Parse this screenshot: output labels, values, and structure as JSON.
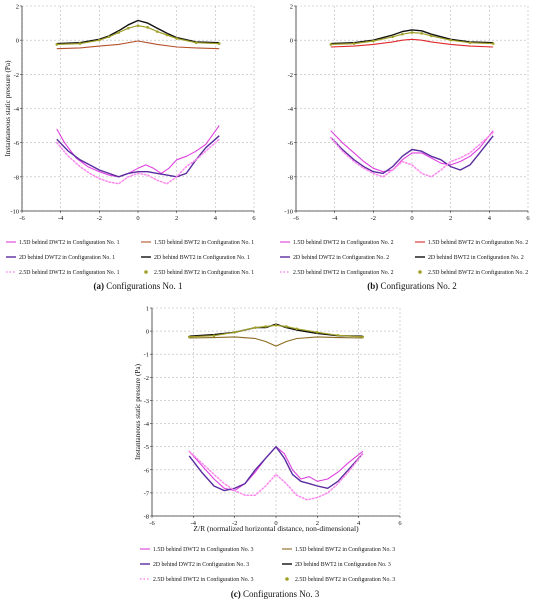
{
  "colors": {
    "magenta": "#e040e0",
    "purple": "#5a2ca0",
    "pink": "#ff88ee",
    "red_brown": "#b5522c",
    "black": "#111111",
    "olive": "#a0a028",
    "red": "#e0282c",
    "dark_olive": "#8a6a1e",
    "grid": "#b8b8b8"
  },
  "chart_data": [
    {
      "type": "line",
      "panel": "a",
      "caption_label": "(a)",
      "caption_text": "Configurations No. 1",
      "title": "",
      "ylabel": "Instantaneous static pressure (Pa)",
      "xlabel": "",
      "xlim": [
        -6,
        6
      ],
      "ylim": [
        -10,
        2
      ],
      "xticks": [
        -6,
        -4,
        -2,
        0,
        2,
        4,
        6
      ],
      "yticks": [
        -10,
        -8,
        -6,
        -4,
        -2,
        0,
        2
      ],
      "grid": true,
      "series": [
        {
          "name": "1.5D behind DWT2 in Configuration No. 1",
          "color": "#e040e0",
          "style": "solid",
          "width": 1.1,
          "x": [
            -4.2,
            -3.8,
            -3.2,
            -2.6,
            -2.0,
            -1.5,
            -1.0,
            -0.5,
            0,
            0.4,
            0.8,
            1.2,
            1.6,
            2.0,
            2.5,
            3.0,
            3.5,
            4.2
          ],
          "y": [
            -5.2,
            -6.0,
            -6.9,
            -7.4,
            -7.7,
            -7.9,
            -8.0,
            -7.8,
            -7.5,
            -7.3,
            -7.5,
            -7.8,
            -7.5,
            -7.0,
            -6.8,
            -6.5,
            -6.1,
            -5.0
          ]
        },
        {
          "name": "1.5D behind BWT2 in Configuration No. 1",
          "color": "#b5522c",
          "style": "solid",
          "width": 1.1,
          "x": [
            -4.2,
            -3.0,
            -2.0,
            -1.0,
            -0.5,
            0,
            0.5,
            1.0,
            2.0,
            3.0,
            4.2
          ],
          "y": [
            -0.5,
            -0.45,
            -0.35,
            -0.25,
            -0.15,
            -0.05,
            -0.15,
            -0.25,
            -0.4,
            -0.45,
            -0.5
          ]
        },
        {
          "name": "2D behind DWT2 in Configuration No. 1",
          "color": "#5a2ca0",
          "style": "solid",
          "width": 1.4,
          "x": [
            -4.2,
            -3.6,
            -3.0,
            -2.5,
            -2.0,
            -1.5,
            -1.0,
            -0.5,
            0,
            0.5,
            1.0,
            1.5,
            2.0,
            2.5,
            3.0,
            3.5,
            4.2
          ],
          "y": [
            -5.8,
            -6.5,
            -7.0,
            -7.3,
            -7.6,
            -7.8,
            -8.0,
            -7.8,
            -7.7,
            -7.7,
            -7.8,
            -7.9,
            -8.0,
            -7.8,
            -7.0,
            -6.3,
            -5.6
          ]
        },
        {
          "name": "2D behind BWT2 in Configuration No. 1",
          "color": "#111111",
          "style": "solid",
          "width": 1.4,
          "x": [
            -4.2,
            -3.0,
            -2.0,
            -1.5,
            -1.0,
            -0.5,
            0,
            0.5,
            1.0,
            1.5,
            2.0,
            3.0,
            4.2
          ],
          "y": [
            -0.2,
            -0.15,
            0.05,
            0.25,
            0.55,
            0.9,
            1.15,
            1.0,
            0.7,
            0.4,
            0.15,
            -0.1,
            -0.15
          ]
        },
        {
          "name": "2.5D behind DWT2 in Configuration No. 1",
          "color": "#ff88ee",
          "style": "dotted",
          "width": 1.5,
          "x": [
            -4.2,
            -3.6,
            -3.0,
            -2.5,
            -2.0,
            -1.5,
            -1.0,
            -0.5,
            0,
            0.5,
            1.0,
            1.5,
            2.0,
            2.5,
            3.0,
            3.5,
            4.2
          ],
          "y": [
            -6.0,
            -6.8,
            -7.4,
            -7.8,
            -8.1,
            -8.3,
            -8.4,
            -8.0,
            -7.8,
            -7.9,
            -8.2,
            -8.4,
            -8.0,
            -7.4,
            -7.0,
            -6.5,
            -5.8
          ]
        },
        {
          "name": "2.5D behind BWT2 in Configuration No. 1",
          "color": "#a0a028",
          "style": "markers",
          "width": 1.2,
          "x": [
            -4.2,
            -3.0,
            -2.0,
            -1.5,
            -1.0,
            -0.5,
            0,
            0.5,
            1.0,
            1.5,
            2.0,
            3.0,
            4.2
          ],
          "y": [
            -0.25,
            -0.2,
            0.0,
            0.2,
            0.45,
            0.7,
            0.85,
            0.75,
            0.5,
            0.3,
            0.1,
            -0.15,
            -0.2
          ]
        }
      ]
    },
    {
      "type": "line",
      "panel": "b",
      "caption_label": "(b)",
      "caption_text": "Configurations No. 2",
      "title": "",
      "ylabel": "",
      "xlabel": "",
      "xlim": [
        -6,
        6
      ],
      "ylim": [
        -10,
        2
      ],
      "xticks": [
        -6,
        -4,
        -2,
        0,
        2,
        4,
        6
      ],
      "yticks": [
        -10,
        -8,
        -6,
        -4,
        -2,
        0,
        2
      ],
      "grid": true,
      "series": [
        {
          "name": "1.5D behind DWT2 in Configuration No. 2",
          "color": "#e040e0",
          "style": "solid",
          "width": 1.1,
          "x": [
            -4.2,
            -3.6,
            -3.0,
            -2.5,
            -2.0,
            -1.5,
            -1.0,
            -0.5,
            0,
            0.5,
            1.0,
            1.5,
            2.0,
            2.5,
            3.0,
            3.5,
            4.2
          ],
          "y": [
            -5.3,
            -6.0,
            -6.6,
            -7.1,
            -7.5,
            -7.7,
            -7.6,
            -7.0,
            -6.6,
            -6.6,
            -6.9,
            -7.2,
            -7.3,
            -7.1,
            -6.8,
            -6.3,
            -5.3
          ]
        },
        {
          "name": "1.5D behind BWT2 in Configuration No. 2",
          "color": "#e0282c",
          "style": "solid",
          "width": 1.1,
          "x": [
            -4.2,
            -3.0,
            -2.0,
            -1.0,
            -0.5,
            0,
            0.5,
            1.0,
            2.0,
            3.0,
            4.2
          ],
          "y": [
            -0.4,
            -0.35,
            -0.25,
            -0.1,
            0.0,
            0.05,
            0.0,
            -0.1,
            -0.25,
            -0.35,
            -0.4
          ]
        },
        {
          "name": "2D behind DWT2 in Configuration No. 2",
          "color": "#5a2ca0",
          "style": "solid",
          "width": 1.4,
          "x": [
            -4.2,
            -3.6,
            -3.0,
            -2.5,
            -2.0,
            -1.5,
            -1.0,
            -0.5,
            0,
            0.5,
            1.0,
            1.5,
            2.0,
            2.5,
            3.0,
            3.5,
            4.2
          ],
          "y": [
            -5.7,
            -6.4,
            -7.0,
            -7.4,
            -7.7,
            -7.8,
            -7.4,
            -6.8,
            -6.4,
            -6.5,
            -6.8,
            -7.0,
            -7.4,
            -7.6,
            -7.3,
            -6.6,
            -5.6
          ]
        },
        {
          "name": "2D behind BWT2 in Configuration No. 2",
          "color": "#111111",
          "style": "solid",
          "width": 1.4,
          "x": [
            -4.2,
            -3.0,
            -2.0,
            -1.0,
            -0.5,
            0,
            0.5,
            1.0,
            2.0,
            3.0,
            4.2
          ],
          "y": [
            -0.2,
            -0.15,
            0.0,
            0.3,
            0.5,
            0.6,
            0.55,
            0.35,
            0.05,
            -0.1,
            -0.15
          ]
        },
        {
          "name": "2.5D behind DWT2 in Configuration No. 2",
          "color": "#ff88ee",
          "style": "dotted",
          "width": 1.5,
          "x": [
            -4.2,
            -3.6,
            -3.0,
            -2.5,
            -2.0,
            -1.5,
            -1.0,
            -0.5,
            0,
            0.5,
            1.0,
            1.5,
            2.0,
            2.5,
            3.0,
            3.5,
            4.2
          ],
          "y": [
            -5.7,
            -6.5,
            -7.1,
            -7.5,
            -7.8,
            -8.0,
            -7.6,
            -7.1,
            -7.3,
            -7.8,
            -8.0,
            -7.6,
            -7.1,
            -6.9,
            -6.6,
            -6.1,
            -5.4
          ]
        },
        {
          "name": "2.5D behind BWT2 in Configuration No. 2",
          "color": "#a0a028",
          "style": "markers",
          "width": 1.2,
          "x": [
            -4.2,
            -3.0,
            -2.0,
            -1.0,
            -0.5,
            0,
            0.5,
            1.0,
            2.0,
            3.0,
            4.2
          ],
          "y": [
            -0.25,
            -0.2,
            -0.05,
            0.2,
            0.35,
            0.45,
            0.4,
            0.25,
            0.0,
            -0.15,
            -0.2
          ]
        }
      ]
    },
    {
      "type": "line",
      "panel": "c",
      "caption_label": "(c)",
      "caption_text": "Configurations No. 3",
      "title": "",
      "ylabel": "Instantaneous static pressure (Pa)",
      "xlabel": "Z/R (normalized horizontal distance, non-dimensional)",
      "xlim": [
        -6,
        6
      ],
      "ylim": [
        -8,
        1
      ],
      "xticks": [
        -6,
        -4,
        -2,
        0,
        2,
        4,
        6
      ],
      "yticks": [
        -8,
        -7,
        -6,
        -5,
        -4,
        -3,
        -2,
        -1,
        0,
        1
      ],
      "grid": true,
      "series": [
        {
          "name": "1.5D behind DWT2 in Configuration No. 3",
          "color": "#e040e0",
          "style": "solid",
          "width": 1.1,
          "x": [
            -4.2,
            -3.6,
            -3.0,
            -2.5,
            -2.0,
            -1.5,
            -1.0,
            -0.5,
            0,
            0.4,
            0.8,
            1.2,
            1.6,
            2.0,
            2.5,
            3.0,
            3.5,
            4.2
          ],
          "y": [
            -5.2,
            -5.8,
            -6.4,
            -6.8,
            -6.9,
            -6.6,
            -6.1,
            -5.5,
            -5.0,
            -5.3,
            -6.0,
            -6.4,
            -6.3,
            -6.5,
            -6.4,
            -6.1,
            -5.7,
            -5.2
          ]
        },
        {
          "name": "1.5D behind BWT2 in Configuration No. 3",
          "color": "#8a6a1e",
          "style": "solid",
          "width": 1.1,
          "x": [
            -4.2,
            -3.0,
            -2.0,
            -1.0,
            -0.5,
            0,
            0.5,
            1.0,
            2.0,
            3.0,
            4.2
          ],
          "y": [
            -0.3,
            -0.28,
            -0.25,
            -0.32,
            -0.45,
            -0.65,
            -0.45,
            -0.32,
            -0.25,
            -0.28,
            -0.3
          ]
        },
        {
          "name": "2D behind DWT2 in Configuration No. 3",
          "color": "#5a2ca0",
          "style": "solid",
          "width": 1.4,
          "x": [
            -4.2,
            -3.6,
            -3.0,
            -2.5,
            -2.0,
            -1.5,
            -1.0,
            -0.5,
            0,
            0.4,
            0.8,
            1.2,
            1.6,
            2.0,
            2.5,
            3.0,
            3.5,
            4.2
          ],
          "y": [
            -5.4,
            -6.1,
            -6.7,
            -6.9,
            -6.8,
            -6.6,
            -6.0,
            -5.5,
            -5.0,
            -5.5,
            -6.2,
            -6.5,
            -6.6,
            -6.7,
            -6.8,
            -6.5,
            -6.0,
            -5.3
          ]
        },
        {
          "name": "2D behind BWT2 in Configuration No. 3",
          "color": "#111111",
          "style": "solid",
          "width": 1.4,
          "x": [
            -4.2,
            -3.0,
            -2.0,
            -1.0,
            -0.5,
            0,
            0.5,
            1.0,
            2.0,
            3.0,
            4.2
          ],
          "y": [
            -0.22,
            -0.15,
            -0.05,
            0.15,
            0.15,
            0.3,
            0.15,
            0.05,
            -0.1,
            -0.2,
            -0.22
          ]
        },
        {
          "name": "2.5D behind DWT2 in Configuration No. 3",
          "color": "#ff88ee",
          "style": "dotted",
          "width": 1.5,
          "x": [
            -4.2,
            -3.6,
            -3.0,
            -2.5,
            -2.0,
            -1.5,
            -1.0,
            -0.5,
            0,
            0.5,
            1.0,
            1.5,
            2.0,
            2.5,
            3.0,
            3.5,
            4.2
          ],
          "y": [
            -5.2,
            -5.7,
            -6.2,
            -6.6,
            -6.9,
            -7.1,
            -7.1,
            -6.7,
            -6.2,
            -6.6,
            -7.1,
            -7.3,
            -7.2,
            -7.0,
            -6.6,
            -6.1,
            -5.3
          ]
        },
        {
          "name": "2.5D behind BWT2 in Configuration No. 3",
          "color": "#a0a028",
          "style": "markers",
          "width": 1.2,
          "x": [
            -4.2,
            -3.0,
            -2.0,
            -1.0,
            -0.5,
            0,
            0.5,
            1.0,
            2.0,
            3.0,
            4.2
          ],
          "y": [
            -0.25,
            -0.2,
            -0.05,
            0.15,
            0.2,
            0.25,
            0.2,
            0.1,
            -0.05,
            -0.18,
            -0.25
          ]
        }
      ]
    }
  ]
}
